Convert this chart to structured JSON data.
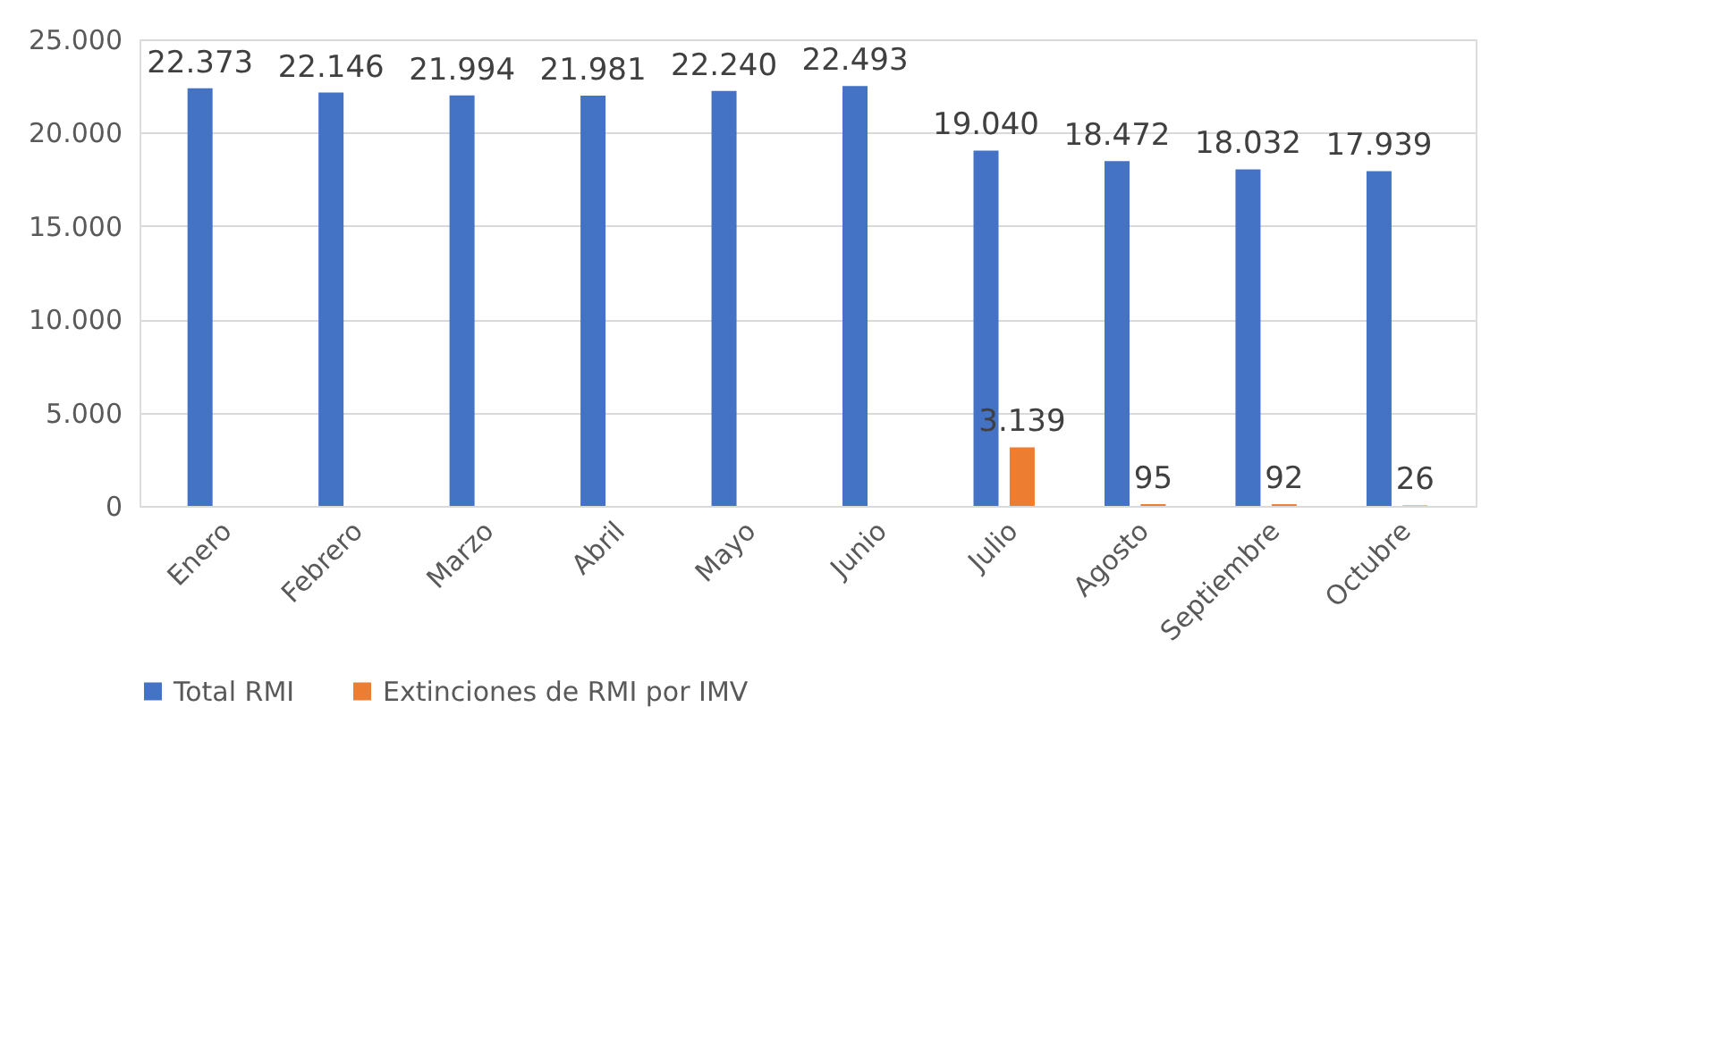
{
  "chart_data": {
    "type": "bar",
    "categories": [
      "Enero",
      "Febrero",
      "Marzo",
      "Abril",
      "Mayo",
      "Junio",
      "Julio",
      "Agosto",
      "Septiembre",
      "Octubre"
    ],
    "series": [
      {
        "name": "Total RMI",
        "color": "#4472c4",
        "values": [
          22373,
          22146,
          21994,
          21981,
          22240,
          22493,
          19040,
          18472,
          18032,
          17939
        ],
        "value_labels": [
          "22.373",
          "22.146",
          "21.994",
          "21.981",
          "22.240",
          "22.493",
          "19.040",
          "18.472",
          "18.032",
          "17.939"
        ]
      },
      {
        "name": "Extinciones de RMI por IMV",
        "color": "#ed7d31",
        "values": [
          null,
          null,
          null,
          null,
          null,
          null,
          3139,
          95,
          92,
          26
        ],
        "value_labels": [
          null,
          null,
          null,
          null,
          null,
          null,
          "3.139",
          "95",
          "92",
          "26"
        ]
      }
    ],
    "ylim": [
      0,
      25000
    ],
    "yticks": [
      {
        "value": 0,
        "label": "0"
      },
      {
        "value": 5000,
        "label": "5.000"
      },
      {
        "value": 10000,
        "label": "10.000"
      },
      {
        "value": 15000,
        "label": "15.000"
      },
      {
        "value": 20000,
        "label": "20.000"
      },
      {
        "value": 25000,
        "label": "25.000"
      }
    ],
    "grid": "y",
    "legend": "bottom"
  }
}
